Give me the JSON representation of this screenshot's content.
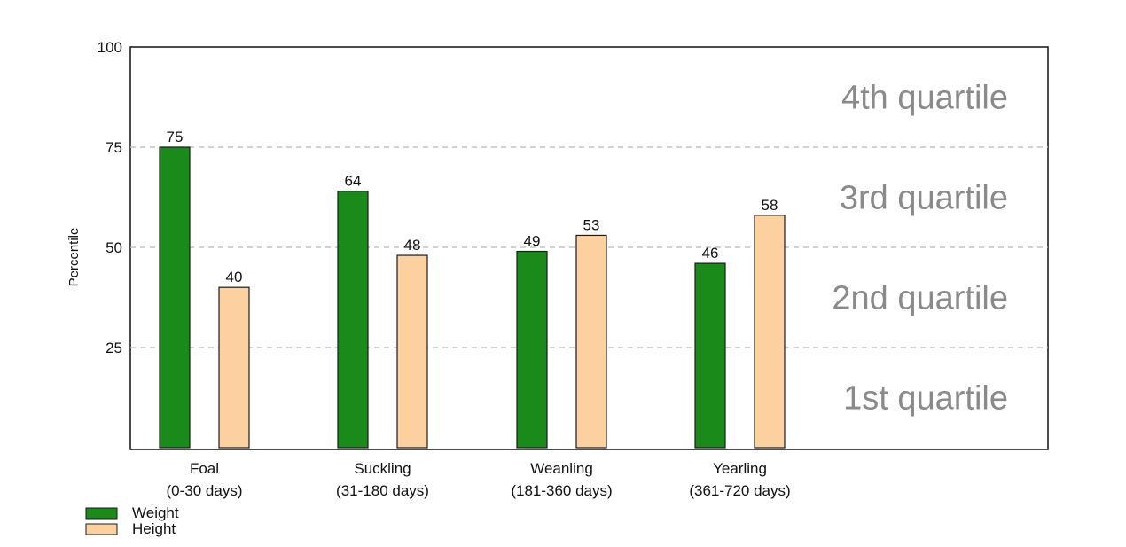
{
  "chart_data": {
    "type": "bar",
    "ylabel": "Percentile",
    "ylim": [
      0,
      100
    ],
    "yticks": [
      25,
      50,
      75,
      100
    ],
    "grid": "dashed horizontal lines at 25, 50, 75",
    "categories": [
      [
        "Foal",
        "(0-30 days)"
      ],
      [
        "Suckling",
        "(31-180 days)"
      ],
      [
        "Weanling",
        "(181-360 days)"
      ],
      [
        "Yearling",
        "(361-720 days)"
      ]
    ],
    "series": [
      {
        "name": "Weight",
        "color": "#1a8a1a",
        "values": [
          75,
          64,
          49,
          46
        ]
      },
      {
        "name": "Height",
        "color": "#fdd09f",
        "values": [
          40,
          48,
          53,
          58
        ]
      }
    ],
    "quartile_labels": [
      "4th quartile",
      "3rd quartile",
      "2nd quartile",
      "1st quartile"
    ],
    "legend_position": "bottom-left"
  }
}
